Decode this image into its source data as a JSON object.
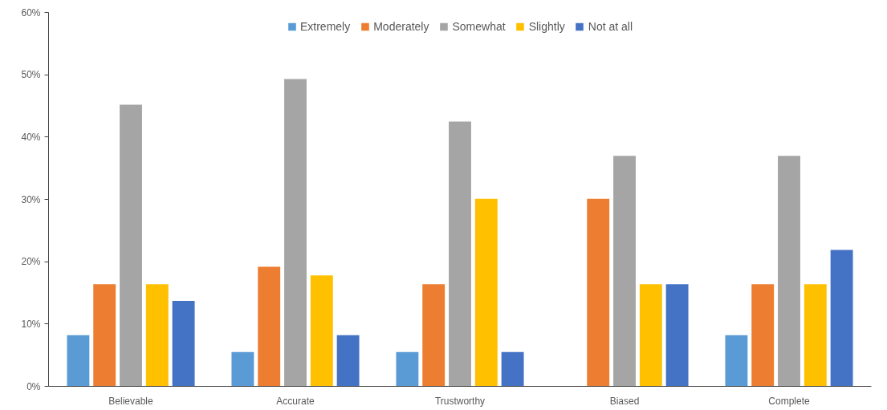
{
  "chart_data": {
    "type": "bar",
    "categories": [
      "Believable",
      "Accurate",
      "Trustworthy",
      "Biased",
      "Complete"
    ],
    "series": [
      {
        "name": "Extremely",
        "color": "#5b9bd5",
        "values": [
          8.2,
          5.5,
          5.5,
          0,
          8.2
        ]
      },
      {
        "name": "Moderately",
        "color": "#ed7d31",
        "values": [
          16.4,
          19.2,
          16.4,
          30.1,
          16.4
        ]
      },
      {
        "name": "Somewhat",
        "color": "#a5a5a5",
        "values": [
          45.2,
          49.3,
          42.5,
          37.0,
          37.0
        ]
      },
      {
        "name": "Slightly",
        "color": "#ffc000",
        "values": [
          16.4,
          17.8,
          30.1,
          16.4,
          16.4
        ]
      },
      {
        "name": "Not at all",
        "color": "#4472c4",
        "values": [
          13.7,
          8.2,
          5.5,
          16.4,
          21.9
        ]
      }
    ],
    "ylim": [
      0,
      60
    ],
    "yticks": [
      {
        "value": 0,
        "label": "0%"
      },
      {
        "value": 10,
        "label": "10%"
      },
      {
        "value": 20,
        "label": "20%"
      },
      {
        "value": 30,
        "label": "30%"
      },
      {
        "value": 40,
        "label": "40%"
      },
      {
        "value": 50,
        "label": "50%"
      },
      {
        "value": 60,
        "label": "60%"
      }
    ],
    "grid": false,
    "legend": "top"
  }
}
